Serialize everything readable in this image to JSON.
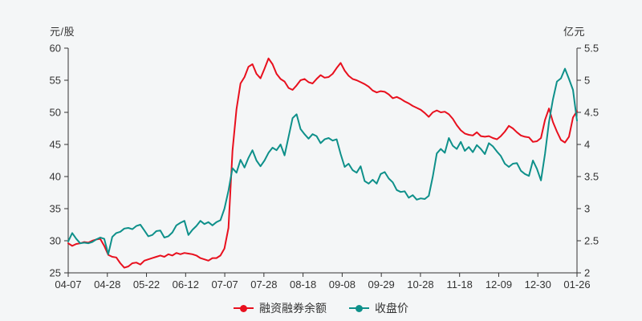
{
  "chart_data": {
    "type": "line",
    "title": "",
    "grid": false,
    "legend_position": "bottom-center",
    "left_axis": {
      "label": "元/股",
      "min": 25,
      "max": 60,
      "step": 5,
      "ticks": [
        "25",
        "30",
        "35",
        "40",
        "45",
        "50",
        "55",
        "60"
      ]
    },
    "right_axis": {
      "label": "亿元",
      "min": 2,
      "max": 5.5,
      "step": 0.5,
      "ticks": [
        "2",
        "2.5",
        "3",
        "3.5",
        "4",
        "4.5",
        "5",
        "5.5"
      ]
    },
    "x_ticks": [
      "04-07",
      "04-28",
      "05-22",
      "06-12",
      "07-07",
      "07-28",
      "08-18",
      "09-08",
      "09-29",
      "10-28",
      "11-18",
      "12-09",
      "12-30",
      "01-26"
    ],
    "series": [
      {
        "name": "融资融券余额",
        "axis": "right",
        "unit": "亿元",
        "color": "#e8101e",
        "values": [
          2.46,
          2.42,
          2.45,
          2.46,
          2.48,
          2.47,
          2.5,
          2.52,
          2.53,
          2.42,
          2.28,
          2.25,
          2.24,
          2.15,
          2.08,
          2.1,
          2.15,
          2.16,
          2.13,
          2.19,
          2.21,
          2.23,
          2.25,
          2.27,
          2.25,
          2.29,
          2.27,
          2.31,
          2.29,
          2.31,
          2.3,
          2.29,
          2.27,
          2.23,
          2.21,
          2.19,
          2.23,
          2.23,
          2.27,
          2.38,
          2.7,
          3.9,
          4.55,
          4.95,
          5.05,
          5.21,
          5.25,
          5.1,
          5.03,
          5.18,
          5.34,
          5.25,
          5.1,
          5.02,
          4.98,
          4.88,
          4.85,
          4.92,
          5.0,
          5.02,
          4.97,
          4.95,
          5.02,
          5.08,
          5.04,
          5.05,
          5.1,
          5.19,
          5.27,
          5.15,
          5.07,
          5.02,
          5.0,
          4.97,
          4.94,
          4.9,
          4.84,
          4.81,
          4.83,
          4.82,
          4.78,
          4.72,
          4.74,
          4.71,
          4.67,
          4.64,
          4.6,
          4.57,
          4.54,
          4.49,
          4.43,
          4.5,
          4.53,
          4.5,
          4.51,
          4.47,
          4.4,
          4.3,
          4.22,
          4.17,
          4.15,
          4.14,
          4.19,
          4.13,
          4.12,
          4.13,
          4.1,
          4.08,
          4.13,
          4.2,
          4.29,
          4.25,
          4.19,
          4.14,
          4.12,
          4.11,
          4.04,
          4.05,
          4.1,
          4.38,
          4.56,
          4.35,
          4.2,
          4.07,
          4.03,
          4.12,
          4.42,
          4.52
        ]
      },
      {
        "name": "收盘价",
        "axis": "left",
        "unit": "元/股",
        "color": "#0e908a",
        "values": [
          29.9,
          31.2,
          30.3,
          29.6,
          29.7,
          29.6,
          29.8,
          30.2,
          30.5,
          30.3,
          27.9,
          30.6,
          31.2,
          31.4,
          31.9,
          32.0,
          31.8,
          32.3,
          32.5,
          31.6,
          30.7,
          30.9,
          31.5,
          31.6,
          30.5,
          30.7,
          31.3,
          32.4,
          32.8,
          33.1,
          30.9,
          31.7,
          32.3,
          33.1,
          32.6,
          32.9,
          32.4,
          32.9,
          33.2,
          35.0,
          37.8,
          41.3,
          40.6,
          42.6,
          41.4,
          42.9,
          44.1,
          42.5,
          41.6,
          42.5,
          43.7,
          44.5,
          44.1,
          45.0,
          43.3,
          46.2,
          49.1,
          49.7,
          47.4,
          46.6,
          45.9,
          46.6,
          46.3,
          45.2,
          45.8,
          46.0,
          45.6,
          45.8,
          43.5,
          41.5,
          42.0,
          41.0,
          40.6,
          41.6,
          39.3,
          38.9,
          39.5,
          38.9,
          40.4,
          40.7,
          39.7,
          39.1,
          37.9,
          37.6,
          37.7,
          36.7,
          37.1,
          36.4,
          36.6,
          36.5,
          37.0,
          40.0,
          43.6,
          44.3,
          43.7,
          46.0,
          44.8,
          44.3,
          45.4,
          44.0,
          44.6,
          43.8,
          44.9,
          44.3,
          43.5,
          45.2,
          44.7,
          43.9,
          43.2,
          42.0,
          41.5,
          42.0,
          42.1,
          40.9,
          40.4,
          40.1,
          42.5,
          41.2,
          39.4,
          43.5,
          48.5,
          52.0,
          54.8,
          55.3,
          56.8,
          55.2,
          53.5,
          48.7
        ]
      }
    ]
  },
  "legend": {
    "items": [
      {
        "label": "融资融券余额",
        "color": "#e8101e"
      },
      {
        "label": "收盘价",
        "color": "#0e908a"
      }
    ]
  },
  "style": {
    "background": "#f4f6f7",
    "axis_color": "#333333",
    "tick_label_color": "#333333"
  }
}
